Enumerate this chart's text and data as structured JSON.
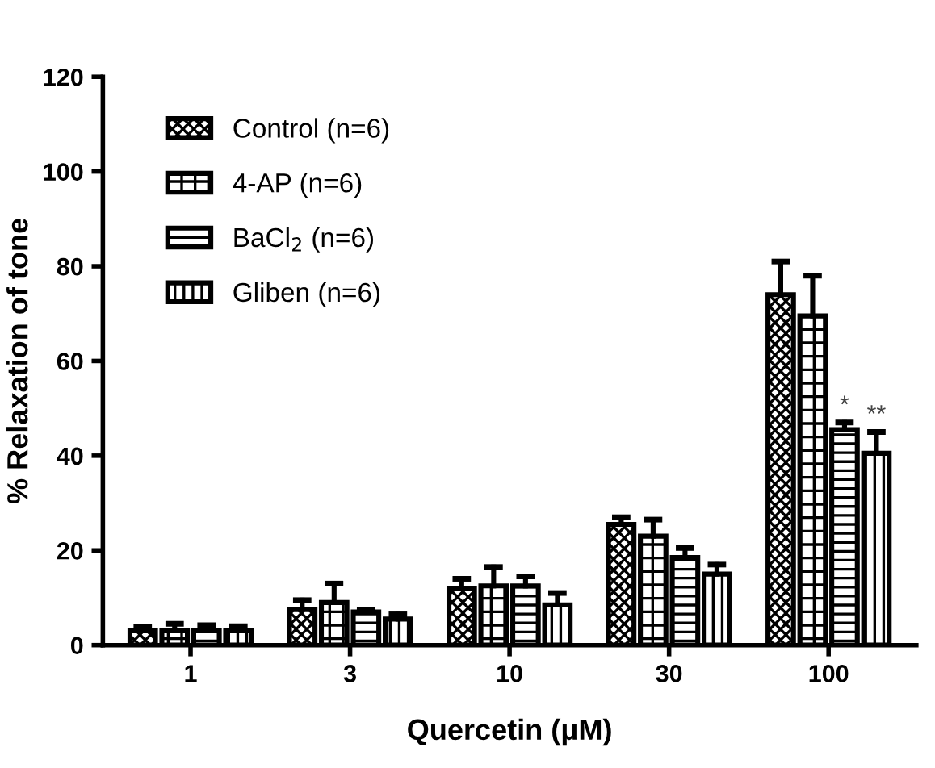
{
  "chart_data": {
    "type": "bar",
    "xlabel": "Quercetin (μM)",
    "ylabel": "% Relaxation of tone",
    "categories": [
      "1",
      "3",
      "10",
      "30",
      "100"
    ],
    "series": [
      {
        "name": "Control (n=6)",
        "color": "#000000",
        "values": [
          3,
          7.5,
          12,
          25.5,
          74
        ],
        "errors": [
          [
            3,
            3.8
          ],
          [
            7.5,
            9.5
          ],
          [
            12,
            14
          ],
          [
            25.5,
            27
          ],
          [
            74,
            81
          ]
        ]
      },
      {
        "name": "4-AP (n=6)",
        "color": "#000000",
        "values": [
          3,
          9,
          12.5,
          23,
          69.5
        ],
        "errors": [
          [
            3,
            4.5
          ],
          [
            9,
            13
          ],
          [
            12.5,
            16.5
          ],
          [
            23,
            26.5
          ],
          [
            69.5,
            78
          ]
        ]
      },
      {
        "name": "BaCl$_{2}$ (n=6)",
        "color": "#000000",
        "values": [
          3,
          7,
          12.5,
          18.5,
          45.5
        ],
        "errors": [
          [
            3,
            4.2
          ],
          [
            7,
            7.5
          ],
          [
            12.5,
            14.5
          ],
          [
            18.5,
            20.5
          ],
          [
            45.5,
            47
          ]
        ]
      },
      {
        "name": "Gliben (n=6)",
        "color": "#000000",
        "values": [
          3,
          5.5,
          8.5,
          15,
          40.5
        ],
        "errors": [
          [
            3,
            4
          ],
          [
            5.5,
            6.5
          ],
          [
            8.5,
            11
          ],
          [
            15,
            17
          ],
          [
            40.5,
            45
          ]
        ]
      }
    ],
    "annotations": [
      {
        "text": "*",
        "x": "100",
        "y": 48
      },
      {
        "text": "**",
        "x": "100",
        "y": 46
      }
    ],
    "ylim": [
      0,
      120
    ],
    "yticks": [
      0,
      20,
      40,
      60,
      80,
      100,
      120
    ],
    "grid": false,
    "legend": "top left"
  }
}
